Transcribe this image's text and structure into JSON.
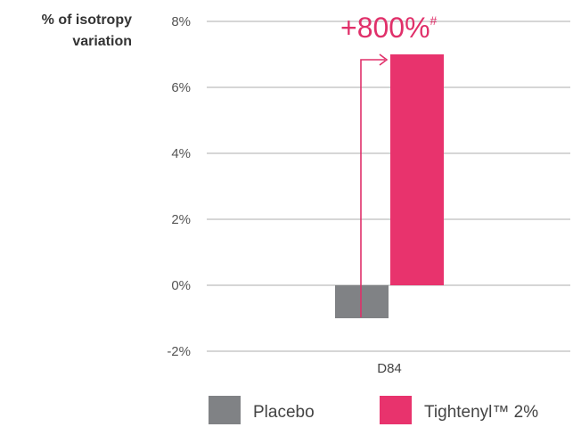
{
  "chart_data": {
    "type": "bar",
    "ylabel": [
      "% of isotropy",
      "variation"
    ],
    "categories": [
      "D84"
    ],
    "series": [
      {
        "name": "Placebo",
        "values": [
          -1
        ],
        "color": "#808285"
      },
      {
        "name": "Tightenyl™ 2%",
        "values": [
          7
        ],
        "color": "#e8336d"
      }
    ],
    "ylim": [
      -2,
      8
    ],
    "yticks": [
      8,
      6,
      4,
      2,
      0,
      -2
    ],
    "ytick_labels": [
      "8%",
      "6%",
      "4%",
      "2%",
      "0%",
      "-2%"
    ],
    "grid": true,
    "legend_position": "bottom",
    "annotation": {
      "text": "+800%",
      "superscript": "#",
      "color": "#e0306a"
    }
  }
}
